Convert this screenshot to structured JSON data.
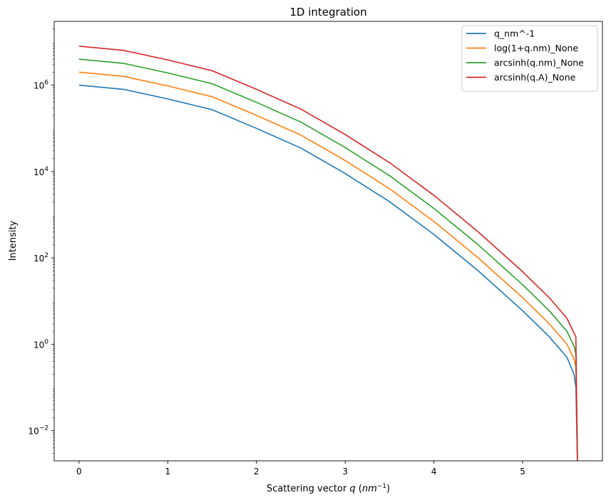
{
  "chart_data": {
    "type": "line",
    "title": "1D integration",
    "xlabel": "Scattering vector q (nm^-1)",
    "ylabel": "Intensity",
    "xlim": [
      -0.28,
      5.9
    ],
    "ylim": [
      0.002,
      30000000
    ],
    "yscale": "log",
    "grid": false,
    "legend_position": "top-right",
    "x_ticks": [
      "0",
      "1",
      "2",
      "3",
      "4",
      "5"
    ],
    "x_tick_values": [
      0,
      1,
      2,
      3,
      4,
      5
    ],
    "y_ticks": [
      {
        "base": "10",
        "exp": "−2",
        "value": 0.01
      },
      {
        "base": "10",
        "exp": "0",
        "value": 1
      },
      {
        "base": "10",
        "exp": "2",
        "value": 100
      },
      {
        "base": "10",
        "exp": "4",
        "value": 10000
      },
      {
        "base": "10",
        "exp": "6",
        "value": 1000000
      }
    ],
    "series": [
      {
        "name": "q_nm^-1",
        "color": "#1f77b4",
        "x": [
          0,
          0.5,
          1.0,
          1.5,
          2.0,
          2.5,
          3.0,
          3.5,
          4.0,
          4.5,
          5.0,
          5.3,
          5.5,
          5.58,
          5.6,
          5.62
        ],
        "y": [
          1000000,
          800000,
          480000,
          270000,
          100000,
          35000,
          9000,
          2000,
          350,
          50,
          6,
          1.5,
          0.5,
          0.2,
          0.1,
          0.001
        ]
      },
      {
        "name": "log(1+q.nm)_None",
        "color": "#ff7f0e",
        "x": [
          0,
          0.5,
          1.0,
          1.5,
          2.0,
          2.5,
          3.0,
          3.5,
          4.0,
          4.5,
          5.0,
          5.3,
          5.5,
          5.58,
          5.6,
          5.62
        ],
        "y": [
          2000000,
          1600000,
          960000,
          540000,
          200000,
          70000,
          18000,
          4000,
          700,
          100,
          12,
          3,
          1,
          0.45,
          0.3,
          0.001
        ]
      },
      {
        "name": "arcsinh(q.nm)_None",
        "color": "#2ca02c",
        "x": [
          0,
          0.5,
          1.0,
          1.5,
          2.0,
          2.5,
          3.0,
          3.5,
          4.0,
          4.5,
          5.0,
          5.3,
          5.5,
          5.58,
          5.6,
          5.62
        ],
        "y": [
          4000000,
          3200000,
          1920000,
          1080000,
          400000,
          140000,
          36000,
          8000,
          1400,
          200,
          24,
          6,
          2,
          0.9,
          0.6,
          0.001
        ]
      },
      {
        "name": "arcsinh(q.A)_None",
        "color": "#d62728",
        "x": [
          0,
          0.5,
          1.0,
          1.5,
          2.0,
          2.5,
          3.0,
          3.5,
          4.0,
          4.5,
          5.0,
          5.3,
          5.5,
          5.58,
          5.6,
          5.62
        ],
        "y": [
          8000000,
          6400000,
          3840000,
          2160000,
          800000,
          280000,
          72000,
          16000,
          2800,
          400,
          48,
          12,
          4,
          1.8,
          1.5,
          0.001
        ]
      }
    ]
  }
}
